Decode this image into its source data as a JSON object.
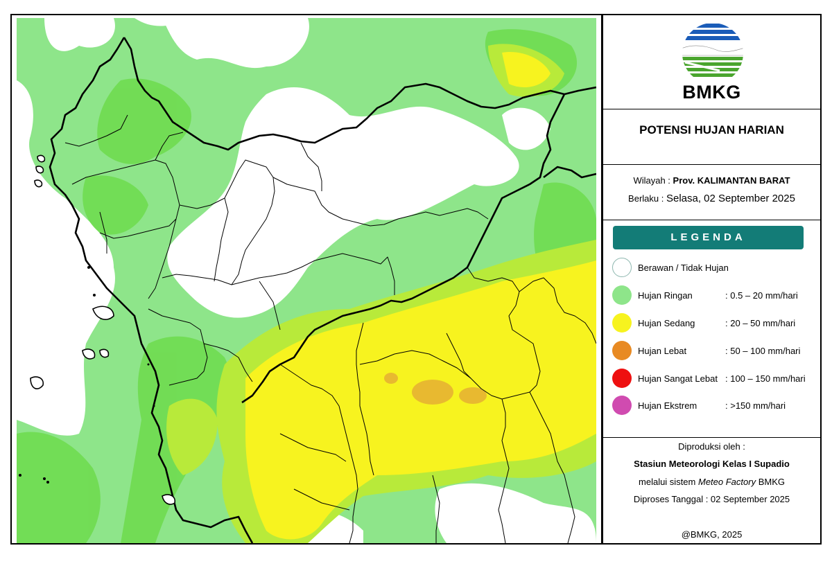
{
  "logo": {
    "text": "BMKG",
    "icon": "bmkg-logo-icon",
    "colors": {
      "blue": "#1a5cb8",
      "green": "#4aa52e"
    }
  },
  "title": "POTENSI HUJAN HARIAN",
  "region": {
    "label": "Wilayah :",
    "value": "Prov. KALIMANTAN BARAT",
    "valid_label": "Berlaku :",
    "valid_value": "Selasa, 02 September 2025"
  },
  "legend": {
    "heading": "LEGENDA",
    "items": [
      {
        "label": "Berawan / Tidak Hujan",
        "range": "",
        "color": "#ffffff"
      },
      {
        "label": "Hujan Ringan",
        "range": ": 0.5 – 20 mm/hari",
        "color": "#8ee58a"
      },
      {
        "label": "Hujan Sedang",
        "range": ": 20 – 50 mm/hari",
        "color": "#f7f31f"
      },
      {
        "label": "Hujan Lebat",
        "range": ": 50 – 100 mm/hari",
        "color": "#e88a23"
      },
      {
        "label": "Hujan Sangat Lebat",
        "range": ": 100 – 150 mm/hari",
        "color": "#ee1010"
      },
      {
        "label": "Hujan Ekstrem",
        "range": ": >150 mm/hari",
        "color": "#d04bb0"
      }
    ]
  },
  "credit": {
    "line1": "Diproduksi oleh :",
    "line2": "Stasiun Meteorologi Kelas I Supadio",
    "line3_pre": "melalui sistem ",
    "line3_italic": "Meteo Factory",
    "line3_post": " BMKG",
    "line4": "Diproses Tanggal : 02 September 2025",
    "copyright": "@BMKG, 2025"
  },
  "map": {
    "colors": {
      "light_rain": "#8ee58a",
      "light_rain_dark": "#6fdc50",
      "moderate": "#f7f31f",
      "moderate_edge": "#b8ea3a",
      "heavy": "#e8b930",
      "boundary": "#000000"
    }
  }
}
